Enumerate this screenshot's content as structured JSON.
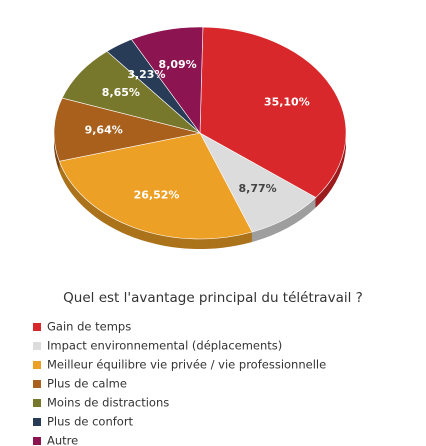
{
  "chart_data": {
    "type": "pie",
    "title": "Quel est l'avantage principal du télétravail ?",
    "categories": [
      "Gain de temps",
      "Impact environnemental (déplacements)",
      "Meilleur équilibre vie privée / vie professionnelle",
      "Plus de calme",
      "Moins de distractions",
      "Plus de confort",
      "Autre"
    ],
    "values": [
      35.1,
      8.77,
      26.52,
      9.64,
      8.65,
      3.23,
      8.09
    ],
    "value_labels": [
      "35,10%",
      "8,77%",
      "26,52%",
      "9,64%",
      "8,65%",
      "3,23%",
      "8,09%"
    ],
    "colors": [
      "#d8282b",
      "#dcdcdc",
      "#eda026",
      "#a8601c",
      "#78782c",
      "#283c58",
      "#8c1450"
    ]
  }
}
